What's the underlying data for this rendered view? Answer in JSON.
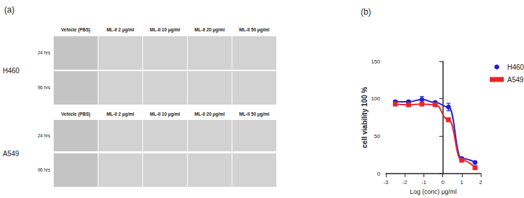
{
  "figure": {
    "panel_a": {
      "label": "(a)",
      "groups": [
        {
          "name": "H460",
          "columns": [
            "Vehicle (PBS)",
            "ML-II 2 μg/ml",
            "ML-II 10 μg/ml",
            "ML-II 20 μg/ml",
            "ML-II 50 μg/ml"
          ],
          "rows": [
            "24 hrs",
            "96 hrs"
          ]
        },
        {
          "name": "A549",
          "columns": [
            "Vehicle (PBS)",
            "ML-II 2 μg/ml",
            "ML-II 10 μg/ml",
            "ML-II 20 μg/ml",
            "ML-II 50 μg/ml"
          ],
          "rows": [
            "24 hrs",
            "96 hrs"
          ]
        }
      ]
    },
    "panel_b": {
      "label": "(b)"
    }
  },
  "chart_data": {
    "type": "line",
    "x_label": "Log (conc) μg/ml",
    "y_label": "cell viability 100 %",
    "x": [
      -2.5,
      -1.8,
      -1.1,
      -0.4,
      0.3,
      1.0,
      1.7
    ],
    "series": [
      {
        "name": "H460",
        "color": "#1f1fd6",
        "marker": "circle",
        "values": [
          96,
          96,
          99,
          95,
          89,
          20,
          15
        ],
        "errors": [
          2,
          2,
          4,
          2,
          5,
          2,
          1
        ]
      },
      {
        "name": "A549",
        "color": "#e8262a",
        "marker": "square",
        "values": [
          93,
          92,
          93,
          92,
          72,
          18,
          8
        ],
        "errors": [
          2,
          2,
          2,
          2,
          2,
          2,
          1
        ]
      }
    ],
    "xlim": [
      -3,
      2
    ],
    "xticks": [
      -3,
      -2,
      -1,
      0,
      1,
      2
    ],
    "ylim": [
      0,
      150
    ],
    "yticks": [
      0,
      50,
      100,
      150
    ],
    "grid": false,
    "legend": "right"
  }
}
